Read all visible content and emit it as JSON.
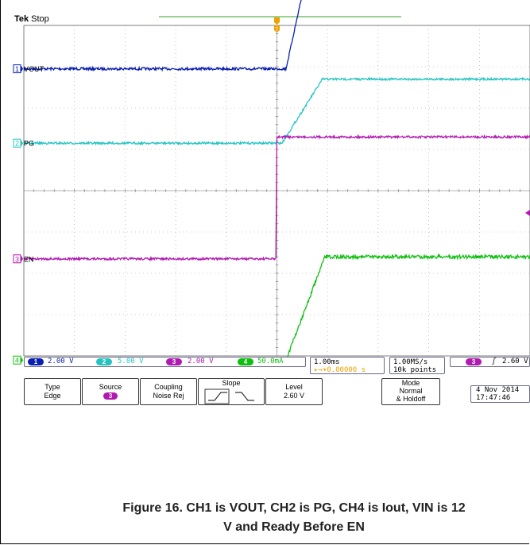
{
  "header": {
    "brand": "Tek",
    "state": "Stop"
  },
  "colors": {
    "ch1": "#0a1fb0",
    "ch2": "#26c3c3",
    "ch3": "#b01ab0",
    "ch4": "#0fbf10",
    "trigger": "#f0a000",
    "grid": "#9a9a9a",
    "orangeTop": "#5ab84a"
  },
  "channel_labels": [
    {
      "num": "1",
      "name": "VOUT"
    },
    {
      "num": "2",
      "name": "PG"
    },
    {
      "num": "3",
      "name": "EN"
    },
    {
      "num": "4",
      "name": "IOUT"
    }
  ],
  "status": {
    "ch1_scale": "2.00 V",
    "ch2_scale": "5.00 V",
    "ch3_scale": "2.00 V",
    "ch4_scale": "50.0mA",
    "timebase": "1.00ms",
    "trigger_pos": "0.00000 s",
    "sample_rate": "1.00MS/s",
    "record_length": "10k points",
    "trigger_source_num": "3",
    "trigger_level": "2.60 V"
  },
  "menu": {
    "type": [
      "Type",
      "Edge"
    ],
    "source": [
      "Source",
      "3"
    ],
    "coupling": [
      "Coupling",
      "Noise Rej"
    ],
    "slope": "Slope",
    "level": [
      "Level",
      "2.60 V"
    ],
    "mode": [
      "Mode",
      "Normal",
      "& Holdoff"
    ],
    "date": "4 Nov 2014",
    "time": "17:47:46"
  },
  "caption": {
    "line1": "Figure 16. CH1 is VOUT, CH2 is PG, CH4 is Iout, VIN is 12",
    "line2": "V and Ready Before EN"
  },
  "chart_data": {
    "type": "line",
    "title": "",
    "x_unit": "ms",
    "xlim": [
      -5,
      5
    ],
    "grid": true,
    "series": [
      {
        "name": "VOUT",
        "x": [
          -5,
          0.18,
          0.9,
          5
        ],
        "y": [
          2.95,
          2.95,
          7.0,
          7.0
        ]
      },
      {
        "name": "PG",
        "x": [
          -5,
          0.1,
          0.9,
          5
        ],
        "y": [
          1.15,
          1.15,
          2.7,
          2.7
        ]
      },
      {
        "name": "EN",
        "x": [
          -5,
          -0.02,
          0.0,
          5
        ],
        "y": [
          -1.65,
          -1.65,
          1.3,
          1.3
        ]
      },
      {
        "name": "IOUT",
        "x": [
          -5,
          0.18,
          0.95,
          5
        ],
        "y": [
          -4.1,
          -4.1,
          -1.6,
          -1.6
        ]
      }
    ]
  }
}
